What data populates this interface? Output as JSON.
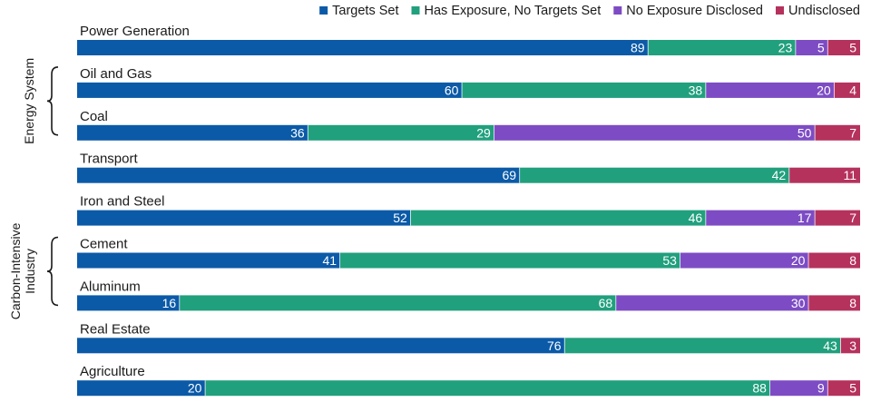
{
  "chart_data": {
    "type": "bar",
    "orientation": "horizontal",
    "stacked": true,
    "categories": [
      "Power Generation",
      "Oil and Gas",
      "Coal",
      "Transport",
      "Iron and Steel",
      "Cement",
      "Aluminum",
      "Real Estate",
      "Agriculture"
    ],
    "series": [
      {
        "name": "Targets Set",
        "color": "#0b5aa8",
        "values": [
          89,
          60,
          36,
          69,
          52,
          41,
          16,
          76,
          20
        ]
      },
      {
        "name": "Has Exposure, No Targets Set",
        "color": "#21a07d",
        "values": [
          23,
          38,
          29,
          42,
          46,
          53,
          68,
          43,
          88
        ]
      },
      {
        "name": "No Exposure Disclosed",
        "color": "#7d4cc4",
        "values": [
          5,
          20,
          50,
          0,
          17,
          20,
          30,
          0,
          9
        ]
      },
      {
        "name": "Undisclosed",
        "color": "#b5325d",
        "values": [
          5,
          4,
          7,
          11,
          7,
          8,
          8,
          3,
          5
        ]
      }
    ],
    "groups": [
      {
        "label": "Energy System",
        "categories": [
          "Oil and Gas",
          "Coal"
        ]
      },
      {
        "label": "Carbon-Intensive\nIndustry",
        "categories": [
          "Cement",
          "Aluminum"
        ]
      }
    ],
    "legend_position": "top-right",
    "grid": false
  }
}
